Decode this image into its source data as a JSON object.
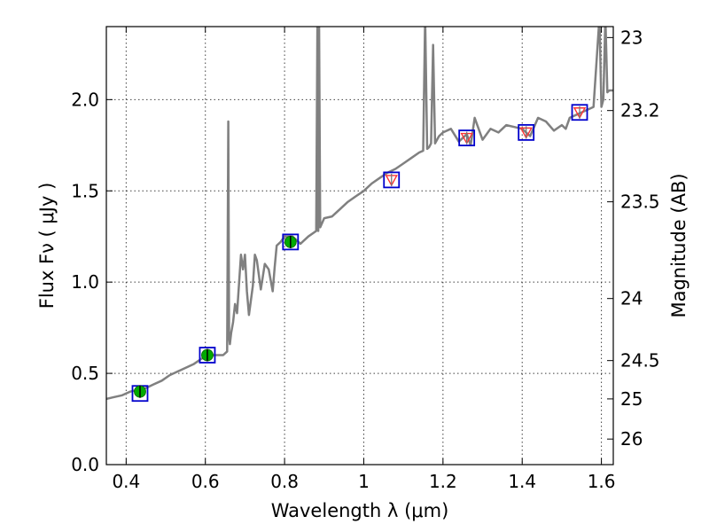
{
  "chart_data": {
    "type": "line",
    "xlabel": "Wavelength  λ (μm)",
    "ylabel": "Flux  Fν  ( μJy )",
    "ylabel_right": "Magnitude (AB)",
    "xlim": [
      0.35,
      1.63
    ],
    "ylim": [
      0.0,
      2.4
    ],
    "grid": true,
    "x_ticks": [
      {
        "value": 0.4,
        "label": "0.4"
      },
      {
        "value": 0.6,
        "label": "0.6"
      },
      {
        "value": 0.8,
        "label": "0.8"
      },
      {
        "value": 1.0,
        "label": "1"
      },
      {
        "value": 1.2,
        "label": "1.2"
      },
      {
        "value": 1.4,
        "label": "1.4"
      },
      {
        "value": 1.6,
        "label": "1.6"
      }
    ],
    "y_ticks": [
      {
        "value": 0.0,
        "label": "0.0"
      },
      {
        "value": 0.5,
        "label": "0.5"
      },
      {
        "value": 1.0,
        "label": "1.0"
      },
      {
        "value": 1.5,
        "label": "1.5"
      },
      {
        "value": 2.0,
        "label": "2.0"
      }
    ],
    "right_ticks": [
      {
        "flux": 2.34,
        "label": "23"
      },
      {
        "flux": 1.94,
        "label": "23.2"
      },
      {
        "flux": 1.44,
        "label": "23.5"
      },
      {
        "flux": 0.91,
        "label": "24"
      },
      {
        "flux": 0.57,
        "label": "24.5"
      },
      {
        "flux": 0.36,
        "label": "25"
      },
      {
        "flux": 0.14,
        "label": "26"
      }
    ],
    "series": [
      {
        "style": "line",
        "color": "#808080",
        "x": [
          0.35,
          0.37,
          0.39,
          0.41,
          0.43,
          0.45,
          0.47,
          0.49,
          0.51,
          0.53,
          0.55,
          0.57,
          0.59,
          0.61,
          0.63,
          0.645,
          0.655,
          0.658,
          0.66,
          0.662,
          0.665,
          0.67,
          0.675,
          0.68,
          0.685,
          0.69,
          0.695,
          0.7,
          0.705,
          0.71,
          0.72,
          0.725,
          0.73,
          0.74,
          0.75,
          0.76,
          0.77,
          0.775,
          0.78,
          0.79,
          0.8,
          0.82,
          0.84,
          0.86,
          0.88,
          0.883,
          0.885,
          0.887,
          0.89,
          0.9,
          0.92,
          0.94,
          0.96,
          0.98,
          1.0,
          1.02,
          1.04,
          1.06,
          1.08,
          1.1,
          1.12,
          1.14,
          1.15,
          1.155,
          1.16,
          1.165,
          1.17,
          1.175,
          1.18,
          1.185,
          1.19,
          1.2,
          1.22,
          1.24,
          1.26,
          1.27,
          1.28,
          1.3,
          1.32,
          1.34,
          1.36,
          1.38,
          1.4,
          1.42,
          1.44,
          1.46,
          1.48,
          1.5,
          1.51,
          1.52,
          1.54,
          1.56,
          1.58,
          1.595,
          1.6,
          1.605,
          1.61,
          1.615,
          1.62,
          1.63
        ],
        "y": [
          0.36,
          0.37,
          0.38,
          0.4,
          0.41,
          0.42,
          0.44,
          0.46,
          0.49,
          0.51,
          0.53,
          0.55,
          0.58,
          0.6,
          0.6,
          0.6,
          0.62,
          1.88,
          0.7,
          0.66,
          0.72,
          0.78,
          0.88,
          0.83,
          0.99,
          1.15,
          1.07,
          1.15,
          0.95,
          0.82,
          0.98,
          1.15,
          1.12,
          0.96,
          1.1,
          1.07,
          0.95,
          1.08,
          1.2,
          1.22,
          1.25,
          1.25,
          1.21,
          1.25,
          1.28,
          2.45,
          1.28,
          2.45,
          1.3,
          1.35,
          1.36,
          1.4,
          1.44,
          1.47,
          1.5,
          1.54,
          1.57,
          1.6,
          1.62,
          1.65,
          1.68,
          1.71,
          1.72,
          2.45,
          1.73,
          1.74,
          1.76,
          2.3,
          1.76,
          1.78,
          1.8,
          1.82,
          1.84,
          1.77,
          1.81,
          1.75,
          1.9,
          1.78,
          1.84,
          1.82,
          1.86,
          1.85,
          1.84,
          1.8,
          1.9,
          1.88,
          1.83,
          1.86,
          1.84,
          1.9,
          1.92,
          1.94,
          1.96,
          2.45,
          1.96,
          2.0,
          2.45,
          2.04,
          2.05,
          2.05
        ]
      },
      {
        "style": "points",
        "marker": "square",
        "color": "#0000cc",
        "x": [
          0.435,
          0.605,
          0.815,
          1.07,
          1.26,
          1.41,
          1.545
        ],
        "y": [
          0.39,
          0.6,
          1.22,
          1.56,
          1.79,
          1.82,
          1.93
        ]
      },
      {
        "style": "points",
        "marker": "circle",
        "color": "#00aa00",
        "x": [
          0.435,
          0.605,
          0.815
        ],
        "y": [
          0.4,
          0.6,
          1.22
        ]
      },
      {
        "style": "points",
        "marker": "triangle-down",
        "color": "#ff3333",
        "x": [
          1.07,
          1.26,
          1.41,
          1.545
        ],
        "y": [
          1.56,
          1.79,
          1.82,
          1.93
        ]
      }
    ]
  }
}
